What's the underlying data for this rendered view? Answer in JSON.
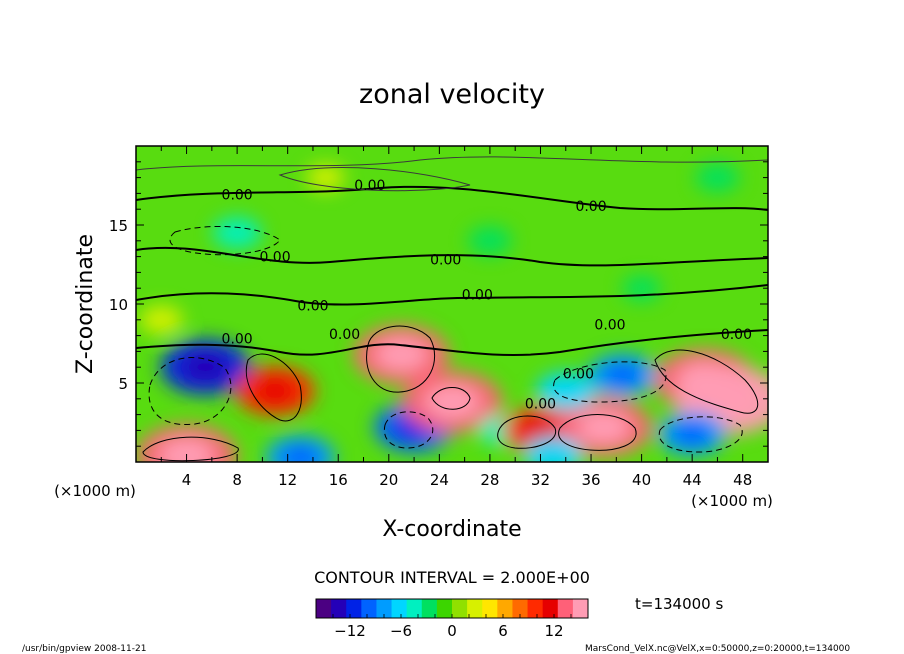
{
  "chart_data": {
    "type": "heatmap",
    "title": "zonal velocity",
    "xlabel": "X-coordinate",
    "ylabel": "Z-coordinate",
    "x_unit_left": "(×1000 m)",
    "x_unit_right": "(×1000 m)",
    "y_unit": "(×1000 m)",
    "xlim": [
      0,
      50
    ],
    "ylim": [
      0,
      20
    ],
    "x_ticks": [
      4,
      8,
      12,
      16,
      20,
      24,
      28,
      32,
      36,
      40,
      44,
      48
    ],
    "y_ticks": [
      5,
      10,
      15
    ],
    "contour_interval_text": "CONTOUR INTERVAL = 2.000E+00",
    "contour_interval": 2.0,
    "time_label": "t=134000 s",
    "zero_contour_label": "0.00",
    "colorbar": {
      "min": -16,
      "max": 16,
      "ticks": [
        -12,
        -6,
        0,
        6,
        12
      ],
      "colors": [
        "#4b0082",
        "#2400b8",
        "#0022e6",
        "#0063ff",
        "#009cff",
        "#00d6ff",
        "#00f0c0",
        "#00e060",
        "#3cd500",
        "#90e000",
        "#d7f000",
        "#ffe600",
        "#ffa800",
        "#ff6a00",
        "#ff2a00",
        "#e60000",
        "#ff6078",
        "#ff9cb4"
      ]
    },
    "features": [
      {
        "x": 5.5,
        "z": 6.0,
        "value": -12
      },
      {
        "x": 4,
        "z": 0.4,
        "value": 14
      },
      {
        "x": 11,
        "z": 4.5,
        "value": 10
      },
      {
        "x": 21,
        "z": 6.8,
        "value": 13
      },
      {
        "x": 22,
        "z": 2.2,
        "value": -10
      },
      {
        "x": 25,
        "z": 3.8,
        "value": 14
      },
      {
        "x": 29,
        "z": 2.0,
        "value": -4
      },
      {
        "x": 32,
        "z": 2.0,
        "value": 9
      },
      {
        "x": 37,
        "z": 2.2,
        "value": 13
      },
      {
        "x": 34,
        "z": 4.5,
        "value": -6
      },
      {
        "x": 38.5,
        "z": 5.5,
        "value": -8
      },
      {
        "x": 45,
        "z": 5.2,
        "value": 14
      },
      {
        "x": 47,
        "z": 3.9,
        "value": 16
      },
      {
        "x": 44,
        "z": 1.8,
        "value": -8
      },
      {
        "x": 13,
        "z": 0.3,
        "value": -8
      },
      {
        "x": 33,
        "z": 0.4,
        "value": -6
      },
      {
        "x": 8,
        "z": 14.5,
        "value": -4
      },
      {
        "x": 28,
        "z": 14.0,
        "value": -3
      },
      {
        "x": 46,
        "z": 18.0,
        "value": -3
      },
      {
        "x": 15,
        "z": 18.0,
        "value": 2
      },
      {
        "x": 40,
        "z": 11.0,
        "value": -2
      },
      {
        "x": 2,
        "z": 9.0,
        "value": 3
      }
    ]
  },
  "footer": {
    "left": "/usr/bin/gpview  2008-11-21",
    "right": "MarsCond_VelX.nc@VelX,x=0:50000,z=0:20000,t=134000"
  }
}
